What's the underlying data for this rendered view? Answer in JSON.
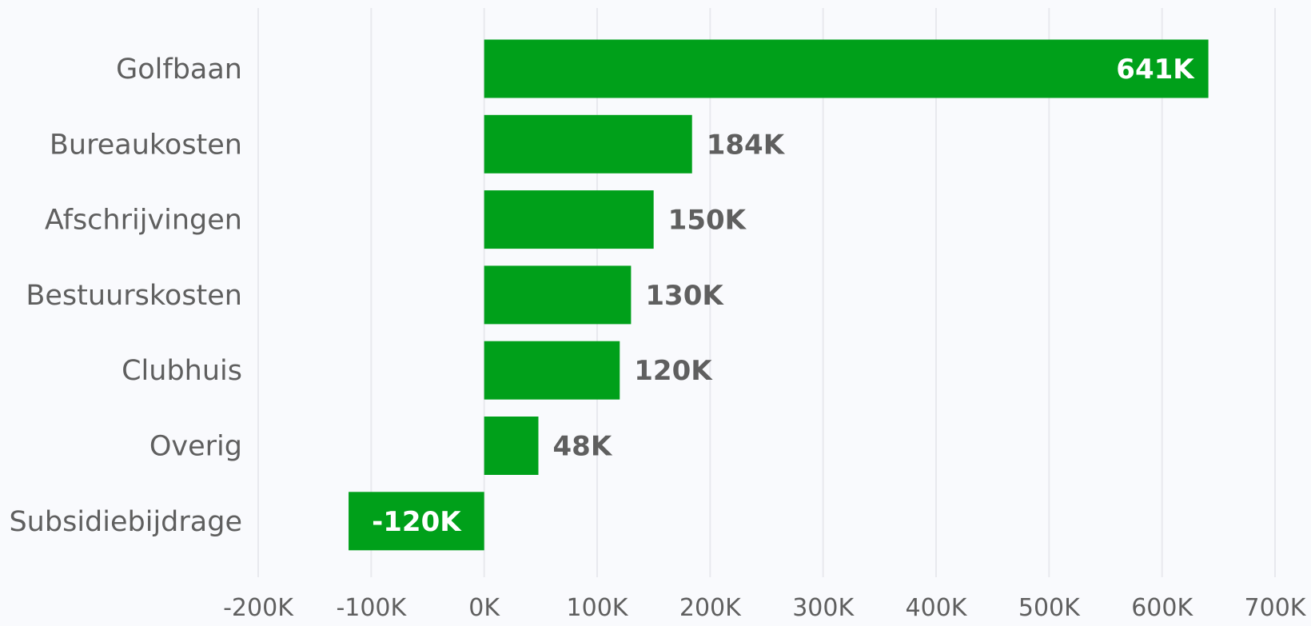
{
  "chart_data": {
    "type": "bar",
    "orientation": "horizontal",
    "categories": [
      "Golfbaan",
      "Bureaukosten",
      "Afschrijvingen",
      "Bestuurskosten",
      "Clubhuis",
      "Overig",
      "Subsidiebijdrage"
    ],
    "values": [
      641000,
      184000,
      150000,
      130000,
      120000,
      48000,
      -120000
    ],
    "data_labels": [
      "641K",
      "184K",
      "150K",
      "130K",
      "120K",
      "48K",
      "-120K"
    ],
    "xlim": [
      -200000,
      700000
    ],
    "x_ticks": [
      -200000,
      -100000,
      0,
      100000,
      200000,
      300000,
      400000,
      500000,
      600000,
      700000
    ],
    "x_tick_labels": [
      "-200K",
      "-100K",
      "0K",
      "100K",
      "200K",
      "300K",
      "400K",
      "500K",
      "600K",
      "700K"
    ],
    "title": "",
    "xlabel": "",
    "ylabel": "",
    "grid": "vertical",
    "legend": "none",
    "bar_color": "#00a01a",
    "label_color_outside": "#5f5f5f",
    "label_color_inside": "#ffffff",
    "background": "#f9fafd"
  }
}
